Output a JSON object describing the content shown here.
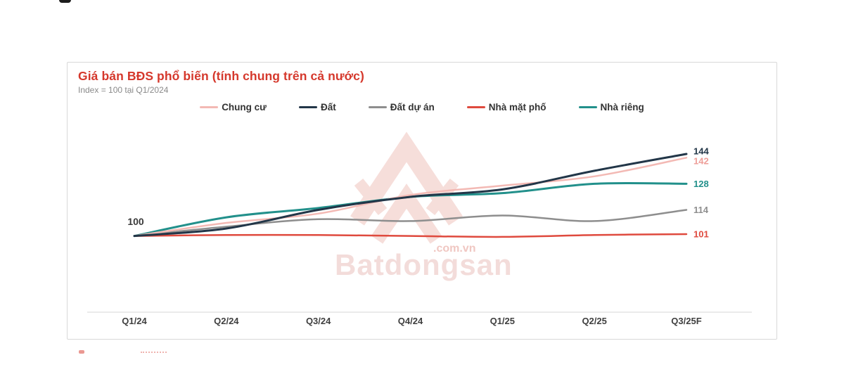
{
  "header": {
    "title": "Giá bán BĐS phổ biến (tính chung trên cả nước)",
    "subtitle": "Index = 100 tại Q1/2024"
  },
  "watermark": {
    "brand": "Batdongsan",
    "domain": ".com.vn"
  },
  "colors": {
    "title_red": "#d5382c",
    "axis_line": "#e3e3e3",
    "axis_text": "#3f3f3f"
  },
  "chart_data": {
    "type": "line",
    "title": "Giá bán BĐS phổ biến (tính chung trên cả nước)",
    "subtitle": "Index = 100 tại Q1/2024",
    "categories": [
      "Q1/24",
      "Q2/24",
      "Q3/24",
      "Q4/24",
      "Q1/25",
      "Q2/25",
      "Q3/25F"
    ],
    "series": [
      {
        "name": "Chung cư",
        "color": "#f3b9b4",
        "label_color": "#ee9e98",
        "values": [
          100,
          107,
          112,
          122,
          127,
          132,
          142
        ],
        "end_label": "142"
      },
      {
        "name": "Đất",
        "color": "#223648",
        "values": [
          100,
          104,
          114,
          121,
          125,
          135,
          144
        ],
        "end_label": "144"
      },
      {
        "name": "Đất dự án",
        "color": "#8e8e8e",
        "values": [
          100,
          105,
          109,
          108,
          111,
          108,
          114
        ],
        "end_label": "114"
      },
      {
        "name": "Nhà mặt phố",
        "color": "#df4a3e",
        "values": [
          100,
          100.5,
          100.5,
          100,
          99.5,
          100.5,
          101
        ],
        "end_label": "101"
      },
      {
        "name": "Nhà riêng",
        "color": "#22908b",
        "values": [
          100,
          110,
          115,
          121,
          123,
          128,
          128
        ],
        "end_label": "128"
      }
    ],
    "start_label": "100",
    "index_base": 100,
    "ylim": [
      97,
      150
    ],
    "grid": false,
    "legend_position": "top"
  }
}
